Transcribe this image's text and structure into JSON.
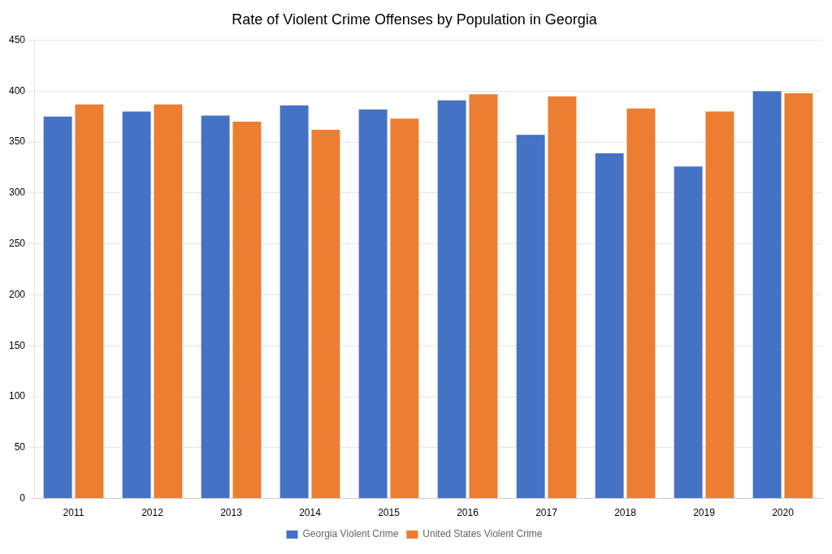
{
  "chart_data": {
    "type": "bar",
    "title": "Rate of Violent Crime Offenses by Population in Georgia",
    "categories": [
      "2011",
      "2012",
      "2013",
      "2014",
      "2015",
      "2016",
      "2017",
      "2018",
      "2019",
      "2020"
    ],
    "series": [
      {
        "name": "Georgia Violent Crime",
        "color": "#4472C4",
        "values": [
          375,
          380,
          376,
          386,
          382,
          391,
          357,
          339,
          326,
          400
        ]
      },
      {
        "name": "United States Violent Crime",
        "color": "#ED7D31",
        "values": [
          387,
          387,
          370,
          362,
          373,
          397,
          395,
          383,
          380,
          398
        ]
      }
    ],
    "ylim": [
      0,
      450
    ],
    "yticks": [
      0,
      50,
      100,
      150,
      200,
      250,
      300,
      350,
      400,
      450
    ],
    "grid": true,
    "legend": "bottom"
  }
}
